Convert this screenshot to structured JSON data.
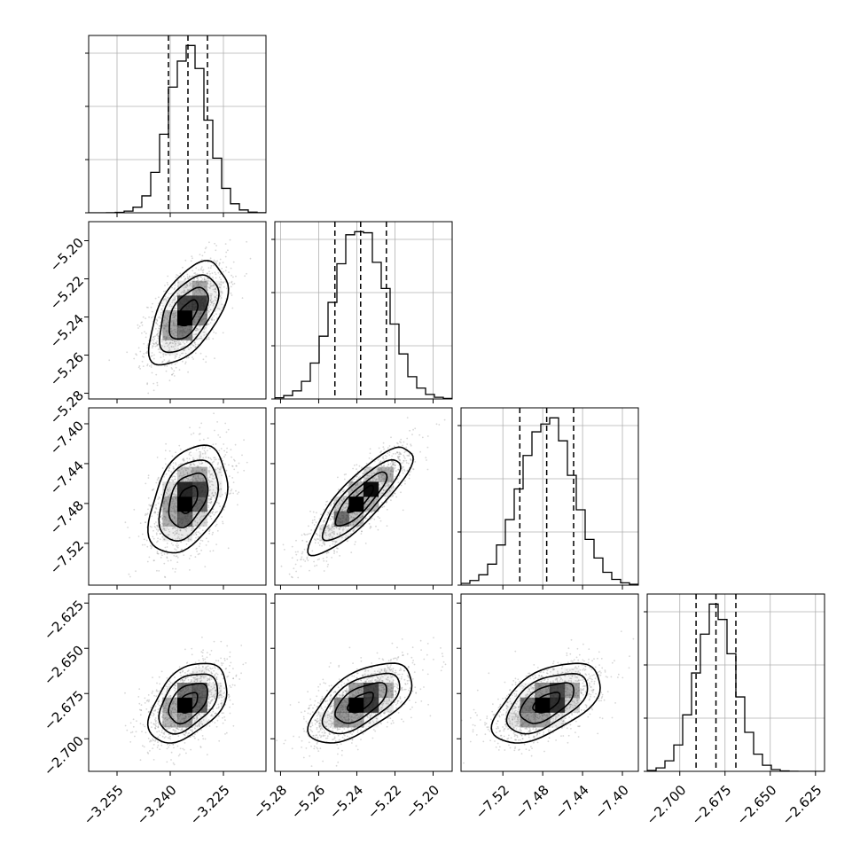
{
  "chart_data": {
    "type": "corner",
    "parameters": [
      {
        "mean": -3.235,
        "sd": 0.0055,
        "quantiles": [
          -3.2405,
          -3.235,
          -3.2295
        ],
        "range": [
          -3.263,
          -3.213
        ],
        "ticks": [
          -3.255,
          -3.24,
          -3.225
        ],
        "tick_labels": [
          "−3.255",
          "−3.240",
          "−3.225"
        ]
      },
      {
        "mean": -5.238,
        "sd": 0.0135,
        "quantiles": [
          -5.2515,
          -5.238,
          -5.2245
        ],
        "range": [
          -5.283,
          -5.19
        ],
        "ticks": [
          -5.28,
          -5.26,
          -5.24,
          -5.22,
          -5.2
        ],
        "tick_labels": [
          "−5.28",
          "−5.26",
          "−5.24",
          "−5.22",
          "−5.20"
        ]
      },
      {
        "mean": -7.476,
        "sd": 0.027,
        "quantiles": [
          -7.503,
          -7.476,
          -7.449
        ],
        "range": [
          -7.562,
          -7.384
        ],
        "ticks": [
          -7.52,
          -7.48,
          -7.44,
          -7.4
        ],
        "tick_labels": [
          "−7.52",
          "−7.48",
          "−7.44",
          "−7.40"
        ]
      },
      {
        "mean": -2.68,
        "sd": 0.011,
        "quantiles": [
          -2.691,
          -2.68,
          -2.669
        ],
        "range": [
          -2.718,
          -2.62
        ],
        "ticks": [
          -2.7,
          -2.675,
          -2.65,
          -2.625
        ],
        "tick_labels": [
          "−2.700",
          "−2.675",
          "−2.650",
          "−2.625"
        ]
      }
    ],
    "correlations": [
      [
        1,
        0.55,
        0.4,
        0.45
      ],
      [
        0.55,
        1,
        0.85,
        0.6
      ],
      [
        0.4,
        0.85,
        1,
        0.55
      ],
      [
        0.45,
        0.6,
        0.55,
        1
      ]
    ],
    "quantile_levels": [
      0.16,
      0.5,
      0.84
    ],
    "contour_levels_sigma": [
      0.5,
      1.0,
      1.5,
      2.0
    ],
    "colors": {
      "hist": "#000000",
      "points": "#8c8c8c",
      "contour": "#000000",
      "grid": "#b0b0b0"
    },
    "grid": true
  }
}
